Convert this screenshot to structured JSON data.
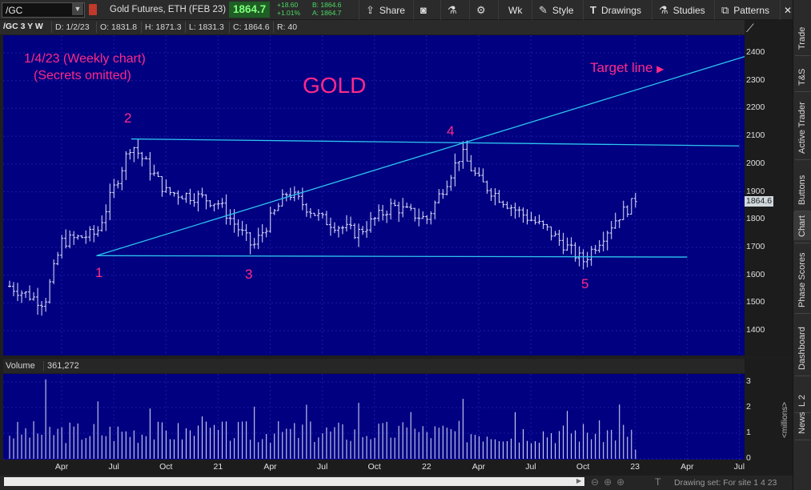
{
  "toolbar": {
    "symbol": "/GC",
    "description": "Gold Futures, ETH (FEB 23)",
    "last_price": "1864.7",
    "net_change": "+18.60",
    "percent_change": "+1.01%",
    "bid": "B: 1864.6",
    "ask": "A: 1864.7",
    "share_label": "Share",
    "timeframe_label": "Wk",
    "style_label": "Style",
    "drawings_label": "Drawings",
    "studies_label": "Studies",
    "patterns_label": "Patterns"
  },
  "chart_header": {
    "symbol": "/GC 3 Y W",
    "date": "D: 1/2/23",
    "open": "O: 1831.8",
    "high": "H: 1871.3",
    "low": "L: 1831.3",
    "close": "C: 1864.6",
    "range": "R: 40"
  },
  "annotations": {
    "note_line1": "1/4/23 (Weekly chart)",
    "note_line2": "(Secrets omitted)",
    "title": "GOLD",
    "target_line": "Target line",
    "point_1": "1",
    "point_2": "2",
    "point_3": "3",
    "point_4": "4",
    "point_5": "5"
  },
  "price_flag": "1864.6",
  "volume_header": {
    "label": "Volume",
    "value": "361,272",
    "unit": "<millions>"
  },
  "footer": {
    "drawing_set": "Drawing set: For site 1 4 23"
  },
  "sidebar": [
    "Trade",
    "T&S",
    "Active Trader",
    "Buttons",
    "Chart",
    "Phase Scores",
    "Dashboard",
    "L 2",
    "News"
  ],
  "colors": {
    "chart_bg": "#000080",
    "bars": "#e6e6ff",
    "trendlines": "#2ec4f0",
    "annotations": "#ff2a8a",
    "price_positive": "#4cd964"
  },
  "chart_data": [
    {
      "type": "ohlc",
      "title": "",
      "ylim": [
        1300,
        2450
      ],
      "y_ticks": [
        1400,
        1500,
        1600,
        1700,
        1800,
        1900,
        2000,
        2100,
        2200,
        2300,
        2400
      ],
      "x_tick_labels": [
        "Apr",
        "Jul",
        "Oct",
        "21",
        "Apr",
        "Jul",
        "Oct",
        "22",
        "Apr",
        "Jul",
        "Oct",
        "23",
        "Apr",
        "Jul"
      ],
      "grid": true,
      "close_path_keypoints": [
        {
          "x": "2020-01",
          "y": 1560
        },
        {
          "x": "2020-03",
          "y": 1500
        },
        {
          "x": "2020-04",
          "y": 1720
        },
        {
          "x": "2020-06",
          "y": 1750
        },
        {
          "x": "2020-08",
          "y": 2075
        },
        {
          "x": "2020-10",
          "y": 1900
        },
        {
          "x": "2020-12",
          "y": 1880
        },
        {
          "x": "2021-01",
          "y": 1860
        },
        {
          "x": "2021-03",
          "y": 1700
        },
        {
          "x": "2021-05",
          "y": 1900
        },
        {
          "x": "2021-07",
          "y": 1800
        },
        {
          "x": "2021-09",
          "y": 1750
        },
        {
          "x": "2021-11",
          "y": 1850
        },
        {
          "x": "2022-01",
          "y": 1800
        },
        {
          "x": "2022-03",
          "y": 2040
        },
        {
          "x": "2022-04",
          "y": 1940
        },
        {
          "x": "2022-06",
          "y": 1840
        },
        {
          "x": "2022-08",
          "y": 1760
        },
        {
          "x": "2022-10",
          "y": 1650
        },
        {
          "x": "2022-12",
          "y": 1810
        },
        {
          "x": "2023-01",
          "y": 1864.6
        }
      ],
      "trendlines": [
        {
          "name": "upper",
          "from": {
            "x": "2020-08",
            "y": 2090
          },
          "to": {
            "x": "2023-07",
            "y": 2065
          }
        },
        {
          "name": "lower",
          "from": {
            "x": "2020-06",
            "y": 1670
          },
          "to": {
            "x": "2023-04",
            "y": 1665
          }
        },
        {
          "name": "target",
          "from": {
            "x": "2020-06",
            "y": 1670
          },
          "to": {
            "x": "2023-08",
            "y": 2400
          }
        }
      ]
    },
    {
      "type": "bar",
      "ylabel": "<millions>",
      "ylim": [
        0,
        3.2
      ],
      "y_ticks": [
        0,
        1,
        2,
        3
      ],
      "last_value": 361272
    }
  ]
}
